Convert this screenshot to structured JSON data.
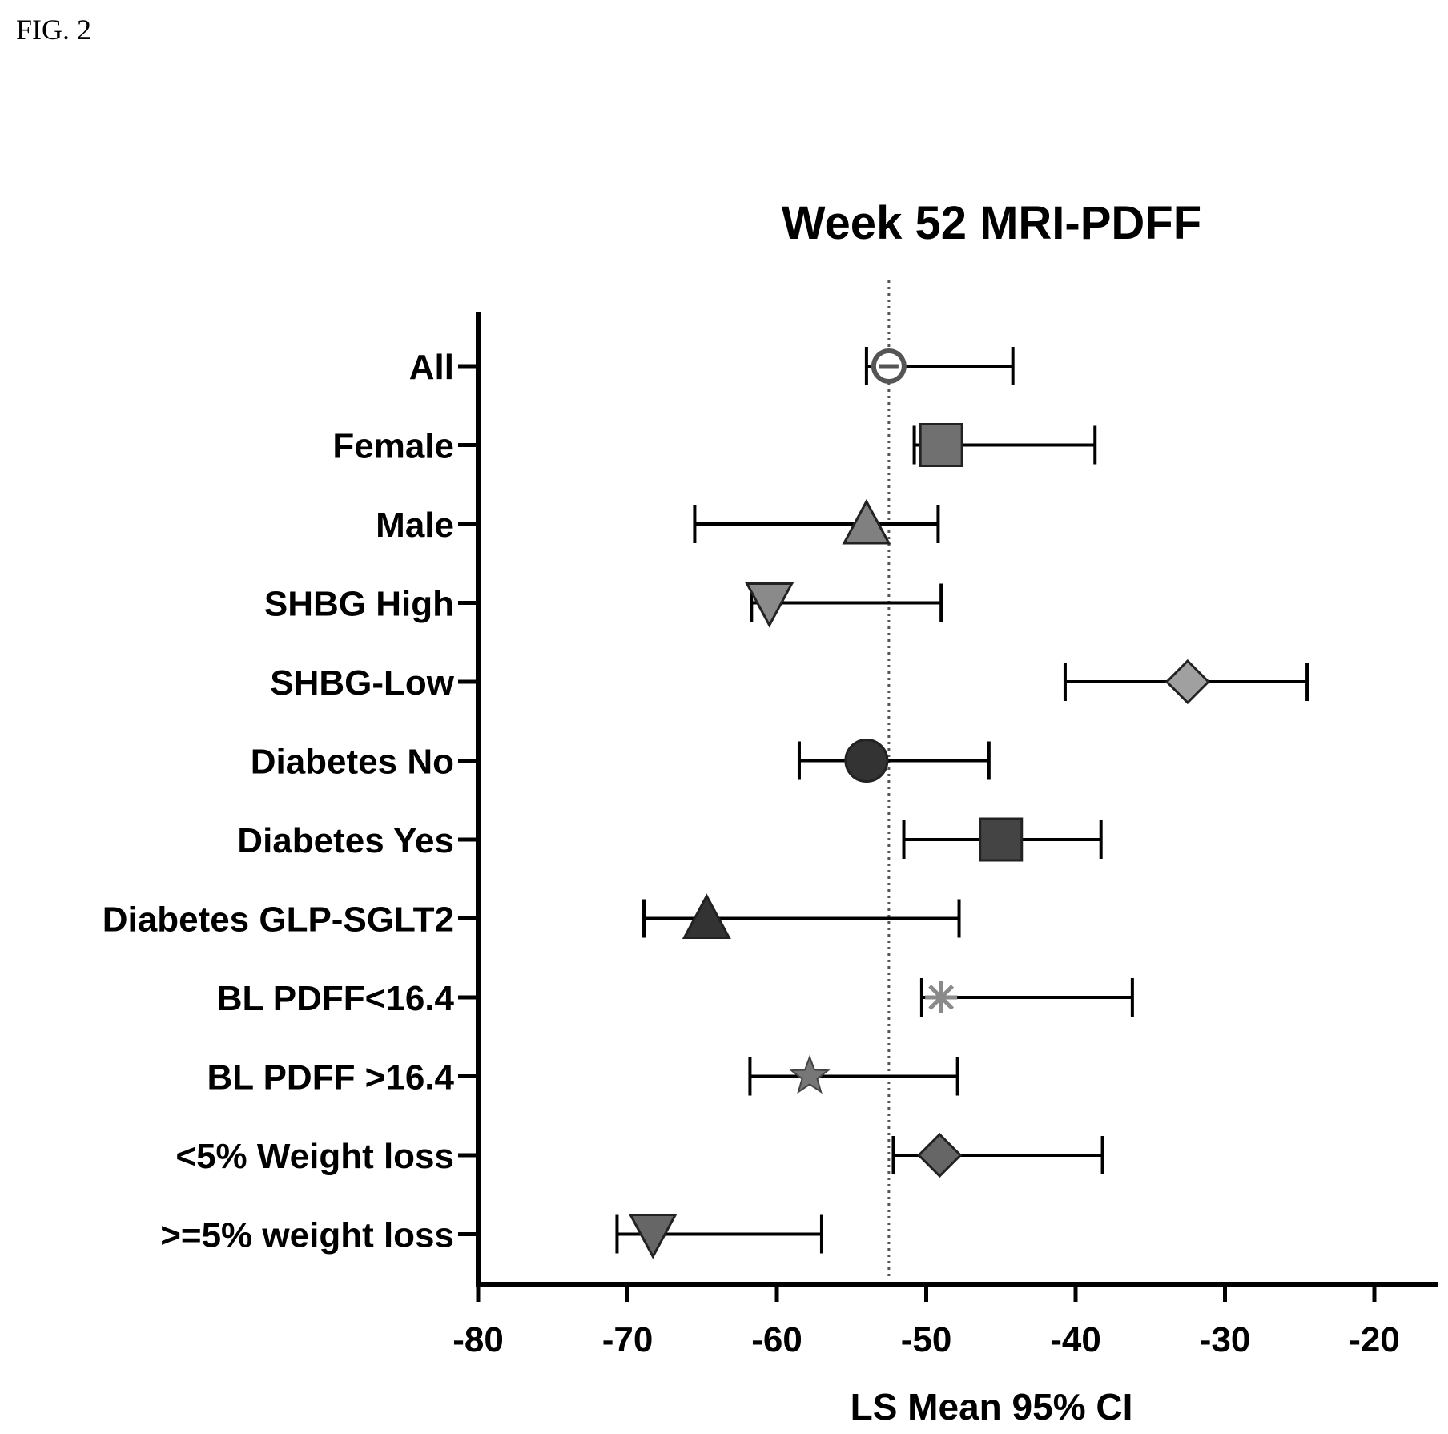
{
  "figure_label": "FIG. 2",
  "chart_data": {
    "type": "forest",
    "title": "Week 52 MRI-PDFF",
    "xlabel": "LS Mean 95% CI",
    "xlim": [
      -80,
      -15
    ],
    "xticks": [
      -80,
      -70,
      -60,
      -50,
      -40,
      -30,
      -20
    ],
    "xtick_labels": [
      "-80",
      "-70",
      "-60",
      "-50",
      "-40",
      "-30",
      "-20"
    ],
    "reference_line": -52.5,
    "grid": false,
    "rows": [
      {
        "label": "All",
        "mean": -52.5,
        "lower": -54.0,
        "upper": -44.2,
        "marker": "circle-minus",
        "color": "#555555"
      },
      {
        "label": "Female",
        "mean": -49.0,
        "lower": -50.8,
        "upper": -38.7,
        "marker": "square",
        "color": "#707070"
      },
      {
        "label": "Male",
        "mean": -54.0,
        "lower": -65.5,
        "upper": -49.2,
        "marker": "triangle-up",
        "color": "#808080"
      },
      {
        "label": "SHBG High",
        "mean": -60.5,
        "lower": -61.7,
        "upper": -49.0,
        "marker": "triangle-down",
        "color": "#8a8a8a"
      },
      {
        "label": "SHBG-Low",
        "mean": -32.5,
        "lower": -40.7,
        "upper": -24.5,
        "marker": "diamond",
        "color": "#a0a0a0"
      },
      {
        "label": "Diabetes No",
        "mean": -54.0,
        "lower": -58.5,
        "upper": -45.8,
        "marker": "circle",
        "color": "#333333"
      },
      {
        "label": "Diabetes Yes",
        "mean": -45.0,
        "lower": -51.5,
        "upper": -38.3,
        "marker": "square",
        "color": "#444444"
      },
      {
        "label": "Diabetes GLP-SGLT2",
        "mean": -64.7,
        "lower": -68.9,
        "upper": -47.8,
        "marker": "triangle-up",
        "color": "#333333"
      },
      {
        "label": "BL PDFF<16.4",
        "mean": -49.0,
        "lower": -50.3,
        "upper": -36.2,
        "marker": "asterisk",
        "color": "#8a8a8a"
      },
      {
        "label": "BL PDFF >16.4",
        "mean": -57.8,
        "lower": -61.8,
        "upper": -47.9,
        "marker": "star",
        "color": "#777777"
      },
      {
        "label": "<5% Weight loss",
        "mean": -49.1,
        "lower": -52.2,
        "upper": -38.2,
        "marker": "diamond",
        "color": "#666666"
      },
      {
        "label": ">=5% weight loss",
        "mean": -68.3,
        "lower": -70.7,
        "upper": -57.0,
        "marker": "triangle-down",
        "color": "#666666"
      }
    ]
  }
}
